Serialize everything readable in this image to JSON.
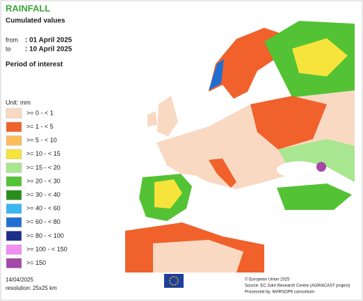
{
  "header": {
    "title": "RAINFALL",
    "subtitle": "Cumulated values",
    "from_label": "from",
    "from_value": ": 01 April 2025",
    "to_label": "to",
    "to_value": ": 10 April 2025",
    "period": "Period of interest"
  },
  "legend": {
    "unit": "Unit: mm",
    "items": [
      {
        "label": ">= 0 - < 1",
        "color": "#f9d9c2"
      },
      {
        "label": ">= 1 - < 5",
        "color": "#f0612c"
      },
      {
        "label": ">= 5 - < 10",
        "color": "#fbbd5c"
      },
      {
        "label": ">= 10 - < 15",
        "color": "#f6e33b"
      },
      {
        "label": ">= 15 - < 20",
        "color": "#a9e690"
      },
      {
        "label": ">= 20 - < 30",
        "color": "#53c234"
      },
      {
        "label": ">= 30 - < 40",
        "color": "#2a8e1e"
      },
      {
        "label": ">= 40 - < 60",
        "color": "#3ab7f1"
      },
      {
        "label": ">= 60 - < 80",
        "color": "#1f6fd2"
      },
      {
        "label": ">= 80 - < 100",
        "color": "#1c2f8c"
      },
      {
        "label": ">= 100 - < 150",
        "color": "#f28ef2"
      },
      {
        "label": ">= 150",
        "color": "#a448a9"
      }
    ]
  },
  "footer": {
    "date": "14/04/2025",
    "resolution": "resolution: 25x25 km",
    "copyright": "© European Union 2025",
    "source": "Source: EC Joint Research Centre (AGRI4CAST project)",
    "processed": "Processed by: MARSOP6 consortium"
  }
}
